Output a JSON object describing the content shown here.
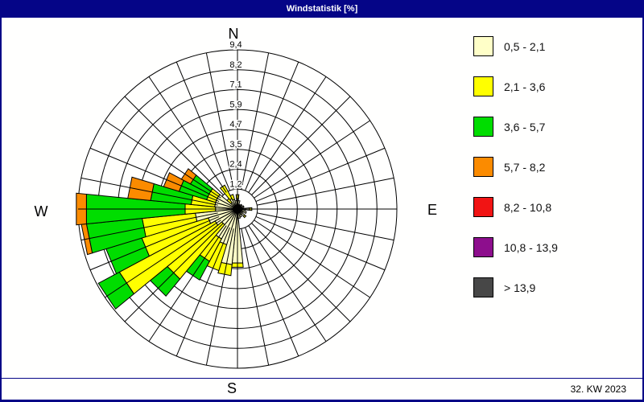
{
  "window": {
    "title": "Windstatistik [%]",
    "status_right": "32. KW 2023"
  },
  "compass": {
    "north": "N",
    "east": "E",
    "south": "S",
    "west": "W"
  },
  "legend": {
    "items": [
      {
        "label": "0,5 - 2,1",
        "color": "#FFFFC8"
      },
      {
        "label": "2,1 - 3,6",
        "color": "#FFFF00"
      },
      {
        "label": "3,6 - 5,7",
        "color": "#00DD00"
      },
      {
        "label": "5,7 - 8,2",
        "color": "#FB8B00"
      },
      {
        "label": "8,2 - 10,8",
        "color": "#F11414"
      },
      {
        "label": "10,8 - 13,9",
        "color": "#8D0E8D"
      },
      {
        "label": "> 13,9",
        "color": "#474747"
      }
    ]
  },
  "chart_data": {
    "type": "windrose-stacked-bar",
    "title": "Windstatistik [%]",
    "unit": "%",
    "max_value": 9.4,
    "ring_values": [
      1.175,
      2.35,
      3.525,
      4.7,
      5.875,
      7.05,
      8.225,
      9.4
    ],
    "ring_labels": [
      "1,2",
      "2,4",
      "3,5",
      "4,7",
      "5,9",
      "7,1",
      "8,2",
      "9,4"
    ],
    "sector_count": 32,
    "sector_width_deg": 11.25,
    "grid": "polar, 8 rings, 32 spokes, N/E/S/W axes",
    "speed_classes": [
      "0,5 - 2,1",
      "2,1 - 3,6",
      "3,6 - 5,7",
      "5,7 - 8,2",
      "8,2 - 10,8",
      "10,8 - 13,9",
      "> 13,9"
    ],
    "class_colors": [
      "#FFFFC8",
      "#FFFF00",
      "#00DD00",
      "#FB8B00",
      "#F11414",
      "#8D0E8D",
      "#474747"
    ],
    "sectors": [
      {
        "dir": "N",
        "deg": 0,
        "segments": [
          0.6,
          0.25
        ]
      },
      {
        "dir": "NbE",
        "deg": 11.25,
        "segments": [
          0.5
        ]
      },
      {
        "dir": "NNE",
        "deg": 22.5,
        "segments": [
          0.3
        ]
      },
      {
        "dir": "NEbN",
        "deg": 33.75,
        "segments": [
          0.25
        ]
      },
      {
        "dir": "NE",
        "deg": 45,
        "segments": [
          0.35
        ]
      },
      {
        "dir": "NEbE",
        "deg": 56.25,
        "segments": [
          0.25
        ]
      },
      {
        "dir": "ENE",
        "deg": 67.5,
        "segments": [
          0.4
        ]
      },
      {
        "dir": "EbN",
        "deg": 78.75,
        "segments": [
          0.35
        ]
      },
      {
        "dir": "E",
        "deg": 90,
        "segments": [
          0.7,
          0.15
        ]
      },
      {
        "dir": "EbS",
        "deg": 101.25,
        "segments": [
          0.45
        ]
      },
      {
        "dir": "ESE",
        "deg": 112.5,
        "segments": [
          0.55
        ]
      },
      {
        "dir": "SEbE",
        "deg": 123.75,
        "segments": [
          0.35
        ]
      },
      {
        "dir": "SE",
        "deg": 135,
        "segments": [
          0.55,
          0.1
        ]
      },
      {
        "dir": "SEbS",
        "deg": 146.25,
        "segments": [
          0.4
        ]
      },
      {
        "dir": "SSE",
        "deg": 157.5,
        "segments": [
          0.5
        ]
      },
      {
        "dir": "SbE",
        "deg": 168.75,
        "segments": [
          0.55
        ]
      },
      {
        "dir": "S",
        "deg": 180,
        "segments": [
          3.2,
          0.25
        ]
      },
      {
        "dir": "SbW",
        "deg": 191.25,
        "segments": [
          3.3,
          0.65
        ]
      },
      {
        "dir": "SSW",
        "deg": 202.5,
        "segments": [
          2.2,
          1.6
        ]
      },
      {
        "dir": "SWbS",
        "deg": 213.75,
        "segments": [
          2.0,
          1.5,
          1.25
        ]
      },
      {
        "dir": "SW",
        "deg": 225,
        "segments": [
          1.2,
          4.15,
          1.3
        ]
      },
      {
        "dir": "SWbW",
        "deg": 236.25,
        "segments": [
          1.5,
          6.4,
          1.4
        ]
      },
      {
        "dir": "WSW",
        "deg": 247.5,
        "segments": [
          1.8,
          4.1,
          2.2
        ]
      },
      {
        "dir": "WbS",
        "deg": 258.75,
        "segments": [
          2.5,
          3.15,
          3.3,
          0.3
        ]
      },
      {
        "dir": "W",
        "deg": 270,
        "segments": [
          1.3,
          1.8,
          5.85,
          0.6
        ]
      },
      {
        "dir": "WbN",
        "deg": 281.25,
        "segments": [
          1.35,
          1.4,
          2.4,
          1.35
        ]
      },
      {
        "dir": "WNW",
        "deg": 292.5,
        "segments": [
          1.35,
          0.55,
          1.7,
          0.95
        ]
      },
      {
        "dir": "NWbW",
        "deg": 303.75,
        "segments": [
          1.35,
          0.55,
          1.25,
          0.6
        ]
      },
      {
        "dir": "NW",
        "deg": 315,
        "segments": [
          0.5,
          0.3
        ]
      },
      {
        "dir": "NWbN",
        "deg": 326.25,
        "segments": [
          0.7,
          0.9
        ]
      },
      {
        "dir": "NNW",
        "deg": 337.5,
        "segments": [
          0.6,
          0.3
        ]
      },
      {
        "dir": "NbW",
        "deg": 348.75,
        "segments": [
          0.5
        ]
      }
    ]
  }
}
